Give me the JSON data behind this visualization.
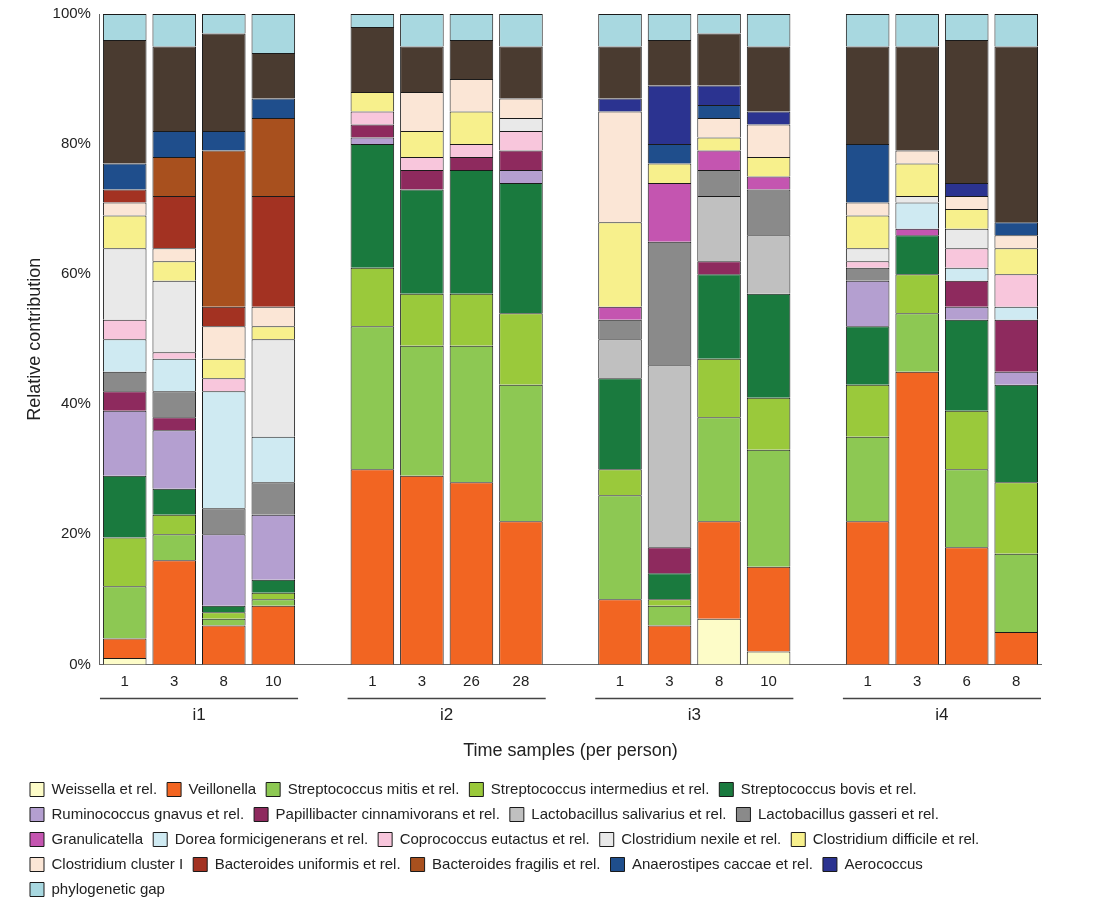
{
  "chart_data": {
    "type": "bar",
    "stacked": true,
    "xlabel": "Time samples (per person)",
    "ylabel": "Relative contribution",
    "categories": [
      "1",
      "3",
      "8",
      "10",
      null,
      "1",
      "3",
      "26",
      "28",
      null,
      "1",
      "3",
      "8",
      "10",
      null,
      "1",
      "3",
      "6",
      "8"
    ],
    "annotations": [
      "i1",
      "i2",
      "i3",
      "i4"
    ],
    "ylim": [
      0,
      100
    ],
    "yticks": [
      {
        "value": 0,
        "label": "0%"
      },
      {
        "value": 20,
        "label": "20%"
      },
      {
        "value": 40,
        "label": "40%"
      },
      {
        "value": 60,
        "label": "60%"
      },
      {
        "value": 80,
        "label": "80%"
      },
      {
        "value": 100,
        "label": "100%"
      }
    ],
    "grid": false,
    "legend": "bottom",
    "series": [
      {
        "name": "Weissella et rel.",
        "color": "#fdfcc8",
        "values": [
          1,
          0,
          0,
          0,
          null,
          0,
          0,
          0,
          0,
          null,
          0,
          0,
          7,
          2,
          null,
          0,
          0,
          0,
          0
        ]
      },
      {
        "name": "Veillonella",
        "color": "#f26522",
        "values": [
          3,
          16,
          6,
          9,
          null,
          30,
          29,
          28,
          22,
          null,
          10,
          6,
          15,
          13,
          null,
          22,
          45,
          18,
          5
        ]
      },
      {
        "name": "Streptococcus mitis et rel.",
        "color": "#8dc853",
        "values": [
          8,
          4,
          1,
          1,
          null,
          22,
          20,
          21,
          21,
          null,
          16,
          3,
          16,
          18,
          null,
          13,
          9,
          12,
          12
        ]
      },
      {
        "name": "Streptococcus intermedius et rel.",
        "color": "#9ac93b",
        "values": [
          7.5,
          3,
          1,
          1,
          null,
          9,
          8,
          8,
          11,
          null,
          4,
          1,
          9,
          8,
          null,
          8,
          6,
          9,
          11
        ]
      },
      {
        "name": "Streptococcus bovis et rel.",
        "color": "#1a7a3e",
        "values": [
          9.5,
          4,
          1,
          2,
          null,
          19,
          16,
          19,
          20,
          null,
          14,
          4,
          13,
          16,
          null,
          9,
          6,
          14,
          15
        ]
      },
      {
        "name": "Ruminococcus gnavus et rel.",
        "color": "#b49fd0",
        "values": [
          10,
          9,
          11,
          10,
          null,
          1,
          0,
          0,
          2,
          null,
          0,
          0,
          0,
          0,
          null,
          7,
          0,
          2,
          2
        ]
      },
      {
        "name": "Papillibacter cinnamivorans et rel.",
        "color": "#8e2a5e",
        "values": [
          3,
          2,
          0,
          0,
          null,
          2,
          3,
          2,
          3,
          null,
          0,
          4,
          2,
          0,
          null,
          0,
          0,
          4,
          8
        ]
      },
      {
        "name": "Lactobacillus salivarius et rel.",
        "color": "#c0c0c0",
        "values": [
          0,
          0,
          0,
          0,
          null,
          0,
          0,
          0,
          0,
          null,
          6,
          28,
          10,
          9,
          null,
          0,
          0,
          0,
          0
        ]
      },
      {
        "name": "Lactobacillus gasseri et rel.",
        "color": "#8a8a8a",
        "values": [
          3,
          4,
          4,
          5,
          null,
          0,
          0,
          0,
          0,
          null,
          3,
          19,
          4,
          7,
          null,
          2,
          0,
          0,
          0
        ]
      },
      {
        "name": "Granulicatella",
        "color": "#c455b0",
        "values": [
          0,
          0,
          0,
          0,
          null,
          0,
          0,
          0,
          0,
          null,
          2,
          9,
          3,
          2,
          null,
          0,
          1,
          0,
          0
        ]
      },
      {
        "name": "Dorea formicigenerans et rel.",
        "color": "#cfeaf2",
        "values": [
          5,
          5,
          18,
          7,
          null,
          0,
          0,
          0,
          0,
          null,
          0,
          0,
          0,
          0,
          null,
          0,
          4,
          2,
          2
        ]
      },
      {
        "name": "Coprococcus eutactus et rel.",
        "color": "#f8c6dc",
        "values": [
          3,
          1,
          2,
          0,
          null,
          2,
          2,
          2,
          3,
          null,
          0,
          0,
          0,
          0,
          null,
          1,
          0,
          3,
          5
        ]
      },
      {
        "name": "Clostridium nexile et rel.",
        "color": "#e9e9e9",
        "values": [
          11,
          11,
          0,
          15,
          null,
          0,
          0,
          0,
          2,
          null,
          0,
          0,
          0,
          0,
          null,
          2,
          1,
          3,
          0
        ]
      },
      {
        "name": "Clostridium difficile et rel.",
        "color": "#f7f08c",
        "values": [
          5,
          3,
          3,
          2,
          null,
          3,
          4,
          5,
          0,
          null,
          13,
          3,
          2,
          3,
          null,
          5,
          5,
          3,
          4
        ]
      },
      {
        "name": "Clostridium cluster I",
        "color": "#fbe6d6",
        "values": [
          2,
          2,
          5,
          3,
          null,
          0,
          6,
          5,
          3,
          null,
          17,
          0,
          3,
          5,
          null,
          2,
          2,
          2,
          2
        ]
      },
      {
        "name": "Bacteroides uniformis et rel.",
        "color": "#a33222",
        "values": [
          2,
          8,
          3,
          17,
          null,
          0,
          0,
          0,
          0,
          null,
          0,
          0,
          0,
          0,
          null,
          0,
          0,
          0,
          0
        ]
      },
      {
        "name": "Bacteroides fragilis et rel.",
        "color": "#a8501e",
        "values": [
          0,
          6,
          24,
          12,
          null,
          0,
          0,
          0,
          0,
          null,
          0,
          0,
          0,
          0,
          null,
          0,
          0,
          0,
          0
        ]
      },
      {
        "name": "Anaerostipes caccae et rel.",
        "color": "#1f4e8c",
        "values": [
          4,
          4,
          3,
          3,
          null,
          0,
          0,
          0,
          0,
          null,
          0,
          3,
          2,
          0,
          null,
          9,
          0,
          0,
          2
        ]
      },
      {
        "name": "Aerococcus",
        "color": "#2b3390",
        "values": [
          0,
          0,
          0,
          0,
          null,
          0,
          0,
          0,
          0,
          null,
          2,
          9,
          3,
          2,
          null,
          0,
          0,
          2,
          0
        ]
      },
      {
        "color": "#4a3b30",
        "values": [
          19,
          13,
          15,
          7,
          null,
          10,
          7,
          6,
          8,
          null,
          8,
          7,
          8,
          10,
          null,
          15,
          16,
          22,
          27
        ]
      },
      {
        "name": "phylogenetic gap",
        "color": "#a8d8e0",
        "values": [
          4,
          5,
          3,
          6,
          null,
          2,
          5,
          4,
          5,
          null,
          5,
          4,
          3,
          5,
          null,
          5,
          5,
          4,
          5
        ]
      }
    ]
  }
}
